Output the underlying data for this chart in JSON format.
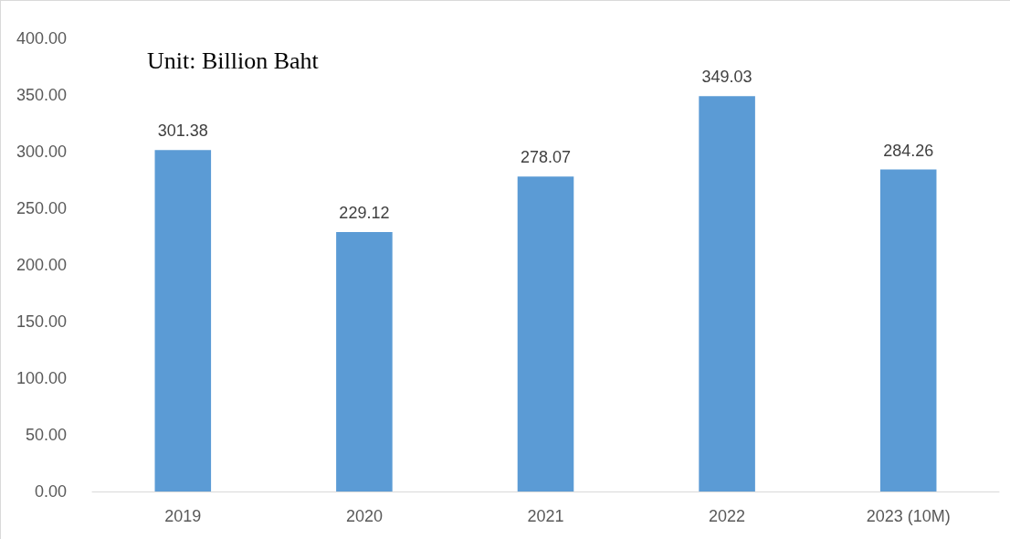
{
  "chart_data": {
    "type": "bar",
    "categories": [
      "2019",
      "2020",
      "2021",
      "2022",
      "2023 (10M)"
    ],
    "values": [
      301.38,
      229.12,
      278.07,
      349.03,
      284.26
    ],
    "color": "#5b9bd5",
    "ylim": [
      0,
      400
    ],
    "yticks": [
      {
        "value": 0,
        "label": "0.00"
      },
      {
        "value": 50,
        "label": "50.00"
      },
      {
        "value": 100,
        "label": "100.00"
      },
      {
        "value": 150,
        "label": "150.00"
      },
      {
        "value": 200,
        "label": "200.00"
      },
      {
        "value": 250,
        "label": "250.00"
      },
      {
        "value": 300,
        "label": "300.00"
      },
      {
        "value": 350,
        "label": "350.00"
      },
      {
        "value": 400,
        "label": "400.00"
      }
    ],
    "data_labels": true,
    "grid": false,
    "annotations": [
      "Unit: Billion Baht"
    ]
  }
}
